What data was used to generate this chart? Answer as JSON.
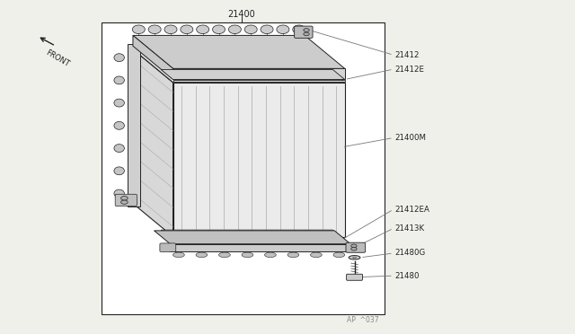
{
  "bg_color": "#f0f0eb",
  "box_bg": "#ffffff",
  "line_color": "#555555",
  "dark_color": "#222222",
  "gray_fill": "#d8d8d8",
  "light_fill": "#eeeeee",
  "title_label": "21400",
  "front_label": "FRONT",
  "footer_label": "AP  ‸037",
  "parts_info": [
    {
      "id": "21412",
      "xt": 0.618,
      "yt": 0.838,
      "xl": 0.685,
      "yl": 0.838
    },
    {
      "id": "21412E",
      "xt": 0.6,
      "yt": 0.8,
      "xl": 0.685,
      "yl": 0.8
    },
    {
      "id": "21400M",
      "xt": 0.59,
      "yt": 0.56,
      "xl": 0.685,
      "yl": 0.59
    },
    {
      "id": "21412EA",
      "xt": 0.56,
      "yt": 0.34,
      "xl": 0.685,
      "yl": 0.37
    },
    {
      "id": "21413K",
      "xt": 0.56,
      "yt": 0.29,
      "xl": 0.685,
      "yl": 0.31
    },
    {
      "id": "21480G",
      "xt": 0.445,
      "yt": 0.208,
      "xl": 0.685,
      "yl": 0.235
    },
    {
      "id": "21480",
      "xt": 0.442,
      "yt": 0.155,
      "xl": 0.685,
      "yl": 0.172
    }
  ]
}
